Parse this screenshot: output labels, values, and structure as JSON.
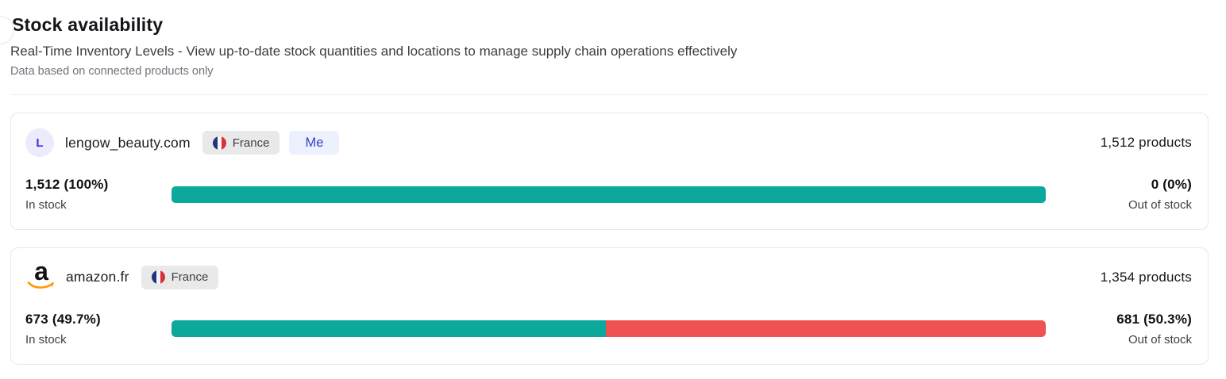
{
  "header": {
    "title": "Stock availability",
    "subtitle": "Real-Time Inventory Levels - View up-to-date stock quantities and locations to manage supply chain operations effectively",
    "note": "Data based on connected products only"
  },
  "colors": {
    "in_stock": "#0ba89b",
    "out_of_stock": "#ee5253",
    "flag_blue": "#25337c",
    "flag_red": "#d8303c",
    "amazon_orange": "#ff9900",
    "accent_blue": "#3343cd"
  },
  "channels": [
    {
      "avatar_letter": "L",
      "name": "lengow_beauty.com",
      "country": "France",
      "me_badge": "Me",
      "products": "1,512 products",
      "in_stock": {
        "value": "1,512 (100%)",
        "label": "In stock",
        "pct": 100
      },
      "out_of_stock": {
        "value": "0 (0%)",
        "label": "Out of stock",
        "pct": 0
      }
    },
    {
      "logo": "amazon-logo",
      "name": "amazon.fr",
      "country": "France",
      "products": "1,354 products",
      "in_stock": {
        "value": "673 (49.7%)",
        "label": "In stock",
        "pct": 49.7
      },
      "out_of_stock": {
        "value": "681 (50.3%)",
        "label": "Out of stock",
        "pct": 50.3
      }
    }
  ]
}
